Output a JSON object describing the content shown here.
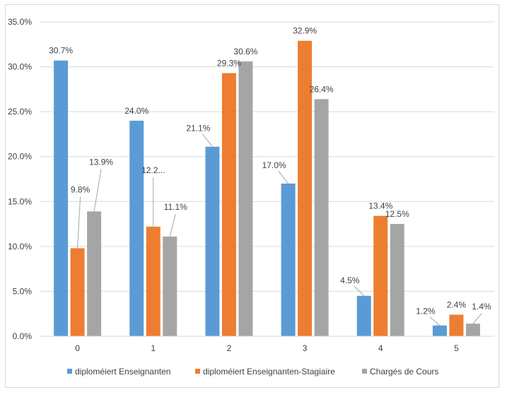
{
  "chart_data": {
    "type": "bar",
    "title": "",
    "xlabel": "",
    "ylabel": "",
    "categories": [
      "0",
      "1",
      "2",
      "3",
      "4",
      "5"
    ],
    "ylim": [
      0,
      35
    ],
    "y_ticks": [
      0,
      5,
      10,
      15,
      20,
      25,
      30,
      35
    ],
    "y_tick_labels": [
      "0.0%",
      "5.0%",
      "10.0%",
      "15.0%",
      "20.0%",
      "25.0%",
      "30.0%",
      "35.0%"
    ],
    "grid": true,
    "legend_position": "bottom",
    "series": [
      {
        "name": "diploméiert Enseignanten",
        "color": "#5b9bd5",
        "values": [
          30.7,
          24.0,
          21.1,
          17.0,
          4.5,
          1.2
        ],
        "labels": [
          "30.7%",
          "24.0%",
          "21.1%",
          "17.0%",
          "4.5%",
          "1.2%"
        ]
      },
      {
        "name": "diploméiert Enseignanten-Stagiaire",
        "color": "#ed7d31",
        "values": [
          9.8,
          12.2,
          29.3,
          32.9,
          13.4,
          2.4
        ],
        "labels": [
          "9.8%",
          "12.2...",
          "29.3%",
          "32.9%",
          "13.4%",
          "2.4%"
        ]
      },
      {
        "name": "Chargés de Cours",
        "color": "#a5a5a5",
        "values": [
          13.9,
          11.1,
          30.6,
          26.4,
          12.5,
          1.4
        ],
        "labels": [
          "13.9%",
          "11.1%",
          "30.6%",
          "26.4%",
          "12.5%",
          "1.4%"
        ]
      }
    ]
  }
}
